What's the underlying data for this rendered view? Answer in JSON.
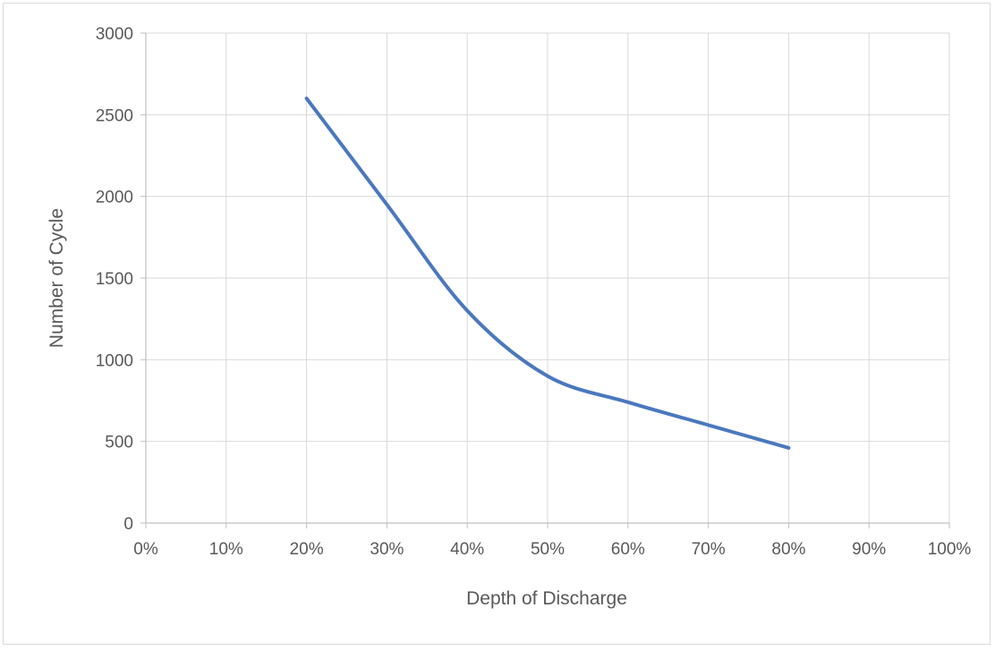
{
  "chart_data": {
    "type": "line",
    "title": "",
    "xlabel": "Depth of Discharge",
    "ylabel": "Number of Cycle",
    "x_ticks": [
      "0%",
      "10%",
      "20%",
      "30%",
      "40%",
      "50%",
      "60%",
      "70%",
      "80%",
      "90%",
      "100%"
    ],
    "y_ticks": [
      "0",
      "500",
      "1000",
      "1500",
      "2000",
      "2500",
      "3000"
    ],
    "xlim": [
      0,
      100
    ],
    "ylim": [
      0,
      3000
    ],
    "grid": true,
    "legend": "none",
    "series": [
      {
        "x": [
          20,
          30,
          40,
          50,
          60,
          70,
          80
        ],
        "values": [
          2600,
          1950,
          1300,
          900,
          740,
          600,
          460
        ],
        "color": "#4a78be"
      }
    ]
  }
}
